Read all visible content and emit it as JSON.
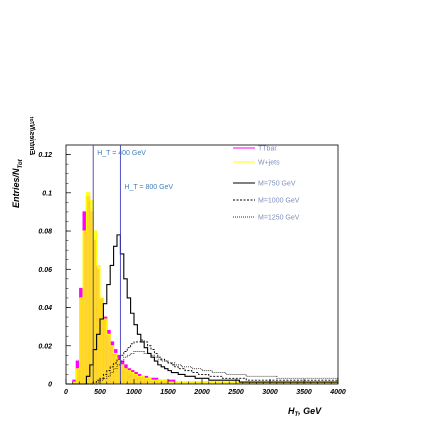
{
  "chart_data": {
    "type": "line",
    "xlabel": "H_T, GeV",
    "ylabel": "Entries/N_Tot",
    "xlim": [
      0,
      4000
    ],
    "ylim": [
      0,
      0.125
    ],
    "x_ticks": [
      0,
      500,
      1000,
      1500,
      2000,
      2500,
      3000,
      3500,
      4000
    ],
    "y_ticks": [
      0,
      0.02,
      0.04,
      0.06,
      0.08,
      0.1,
      0.12
    ],
    "x_tick_labels": [
      "0",
      "500",
      "1000",
      "1500",
      "2000",
      "2500",
      "3000",
      "3500",
      "4000"
    ],
    "y_tick_labels": [
      "0",
      "0.02",
      "0.04",
      "0.06",
      "0.08",
      "0.1",
      "0.12"
    ],
    "legend_position": "top-right",
    "bin_width": 50,
    "vlines": [
      {
        "x": 400,
        "label": "H_T = 400 GeV"
      },
      {
        "x": 800,
        "label": "H_T = 800 GeV"
      }
    ],
    "annotations": [
      "H_T = 400 GeV",
      "H_T = 800 GeV"
    ],
    "colors": {
      "ttbar": "#ff00ff",
      "wjets": "#ffff00",
      "vline": "#3f3fbf",
      "annotation": "#3f7fbf"
    },
    "series": [
      {
        "name": "TTbar",
        "style": "hist-filled",
        "color": "#ff00ff",
        "x_start": 0,
        "values": [
          0.0,
          0.0,
          0.002,
          0.012,
          0.05,
          0.09,
          0.098,
          0.09,
          0.075,
          0.06,
          0.045,
          0.035,
          0.028,
          0.022,
          0.018,
          0.015,
          0.012,
          0.01,
          0.008,
          0.007,
          0.006,
          0.005,
          0.004,
          0.004,
          0.003,
          0.003,
          0.003,
          0.002,
          0.002,
          0.002,
          0.002,
          0.002,
          0.001,
          0.001,
          0.001,
          0.001,
          0.001,
          0.001,
          0.001,
          0.001,
          0.001,
          0.001,
          0.001,
          0.001,
          0.001,
          0.001,
          0.001,
          0.001,
          0.001,
          0.001,
          0.001,
          0.001,
          0.001,
          0.001,
          0.001,
          0.001,
          0.001,
          0.001,
          0.001,
          0.001,
          0.001,
          0.001,
          0.001,
          0.001,
          0.001,
          0.001,
          0.001,
          0.001,
          0.001,
          0.001,
          0.001,
          0.001,
          0.001,
          0.001,
          0.001,
          0.001,
          0.001,
          0.001,
          0.001,
          0.001
        ]
      },
      {
        "name": "W+jets",
        "style": "hist-filled",
        "color": "#ffff00",
        "x_start": 0,
        "values": [
          0.0,
          0.0,
          0.001,
          0.008,
          0.045,
          0.08,
          0.1,
          0.096,
          0.08,
          0.062,
          0.045,
          0.034,
          0.026,
          0.02,
          0.016,
          0.013,
          0.01,
          0.008,
          0.007,
          0.006,
          0.005,
          0.004,
          0.004,
          0.003,
          0.003,
          0.002,
          0.002,
          0.002,
          0.002,
          0.002,
          0.001,
          0.001,
          0.001,
          0.001,
          0.001,
          0.001,
          0.001,
          0.001,
          0.001,
          0.001,
          0.001,
          0.001,
          0.001,
          0.001,
          0.001,
          0.001,
          0.001,
          0.001,
          0.001,
          0.001,
          0.001,
          0.001,
          0.001,
          0.001,
          0.001,
          0.001,
          0.001,
          0.001,
          0.001,
          0.001,
          0.001,
          0.001,
          0.001,
          0.001,
          0.001,
          0.001,
          0.001,
          0.001,
          0.001,
          0.001,
          0.001,
          0.001,
          0.001,
          0.001,
          0.001,
          0.001,
          0.001,
          0.001,
          0.001,
          0.001
        ]
      },
      {
        "name": "M=750 GeV",
        "style": "hist-solid",
        "color": "#000000",
        "x_start": 0,
        "values": [
          0,
          0,
          0,
          0,
          0,
          0,
          0.004,
          0.01,
          0.018,
          0.026,
          0.034,
          0.042,
          0.052,
          0.062,
          0.072,
          0.078,
          0.068,
          0.055,
          0.045,
          0.037,
          0.031,
          0.026,
          0.022,
          0.019,
          0.016,
          0.014,
          0.012,
          0.01,
          0.009,
          0.008,
          0.007,
          0.006,
          0.006,
          0.005,
          0.005,
          0.004,
          0.004,
          0.004,
          0.003,
          0.003,
          0.003,
          0.003,
          0.002,
          0.002,
          0.002,
          0.002,
          0.002,
          0.002,
          0.002,
          0.002,
          0.002,
          0.001,
          0.001,
          0.001,
          0.001,
          0.001,
          0.001,
          0.001,
          0.001,
          0.001,
          0.001,
          0.001,
          0.001,
          0.001,
          0.001,
          0.001,
          0.001,
          0.001,
          0.001,
          0.001,
          0.001,
          0.001,
          0.001,
          0.001,
          0.001,
          0.001,
          0.001,
          0.001,
          0.001,
          0.001
        ]
      },
      {
        "name": "M=1000 GeV",
        "style": "hist-dashed",
        "color": "#000000",
        "x_start": 0,
        "values": [
          0,
          0,
          0,
          0,
          0,
          0,
          0,
          0,
          0.001,
          0.002,
          0.003,
          0.005,
          0.007,
          0.009,
          0.011,
          0.013,
          0.015,
          0.017,
          0.019,
          0.021,
          0.022,
          0.022,
          0.023,
          0.022,
          0.02,
          0.018,
          0.016,
          0.014,
          0.013,
          0.012,
          0.011,
          0.01,
          0.009,
          0.008,
          0.008,
          0.007,
          0.007,
          0.006,
          0.006,
          0.005,
          0.005,
          0.005,
          0.004,
          0.004,
          0.004,
          0.004,
          0.003,
          0.003,
          0.003,
          0.003,
          0.003,
          0.003,
          0.003,
          0.002,
          0.002,
          0.002,
          0.002,
          0.002,
          0.002,
          0.002,
          0.002,
          0.002,
          0.002,
          0.002,
          0.002,
          0.002,
          0.002,
          0.002,
          0.002,
          0.002,
          0.002,
          0.002,
          0.002,
          0.002,
          0.002,
          0.002,
          0.002,
          0.002,
          0.002,
          0.002
        ]
      },
      {
        "name": "M=1250 GeV",
        "style": "hist-dotted",
        "color": "#000000",
        "x_start": 0,
        "values": [
          0,
          0,
          0,
          0,
          0,
          0,
          0,
          0,
          0,
          0.001,
          0.002,
          0.003,
          0.004,
          0.006,
          0.008,
          0.01,
          0.012,
          0.014,
          0.015,
          0.016,
          0.017,
          0.017,
          0.017,
          0.016,
          0.016,
          0.015,
          0.014,
          0.013,
          0.012,
          0.012,
          0.011,
          0.011,
          0.01,
          0.01,
          0.009,
          0.009,
          0.009,
          0.008,
          0.008,
          0.008,
          0.007,
          0.007,
          0.007,
          0.006,
          0.006,
          0.006,
          0.006,
          0.005,
          0.005,
          0.005,
          0.005,
          0.005,
          0.005,
          0.004,
          0.004,
          0.004,
          0.004,
          0.004,
          0.004,
          0.004,
          0.004,
          0.004,
          0.003,
          0.003,
          0.003,
          0.003,
          0.003,
          0.003,
          0.003,
          0.003,
          0.003,
          0.003,
          0.003,
          0.003,
          0.003,
          0.003,
          0.003,
          0.003,
          0.003,
          0.003
        ]
      }
    ]
  },
  "ui": {
    "ylabel_main": "Entries/N",
    "ylabel_sub": "Tot",
    "xlabel_main": "H",
    "xlabel_sub": "T",
    "xlabel_rest": ", GeV",
    "ylabel_mirror": "Entries/N_Tot"
  }
}
